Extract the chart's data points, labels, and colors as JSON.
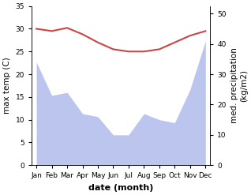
{
  "months": [
    "Jan",
    "Feb",
    "Mar",
    "Apr",
    "May",
    "Jun",
    "Jul",
    "Aug",
    "Sep",
    "Oct",
    "Nov",
    "Dec"
  ],
  "month_x": [
    0,
    1,
    2,
    3,
    4,
    5,
    6,
    7,
    8,
    9,
    10,
    11
  ],
  "temp_max": [
    30.0,
    29.5,
    30.2,
    28.8,
    27.0,
    25.5,
    25.0,
    25.0,
    25.5,
    27.0,
    28.5,
    29.5
  ],
  "precipitation": [
    34.0,
    23.0,
    24.0,
    17.0,
    16.0,
    10.0,
    10.0,
    17.0,
    15.0,
    14.0,
    25.0,
    41.0
  ],
  "temp_color": "#cc4444",
  "precip_fill_color": "#bcc5ee",
  "temp_ylim": [
    0,
    35
  ],
  "precip_ylim": [
    0,
    52.5
  ],
  "temp_yticks": [
    0,
    5,
    10,
    15,
    20,
    25,
    30,
    35
  ],
  "precip_yticks": [
    0,
    10,
    20,
    30,
    40,
    50
  ],
  "xlabel": "date (month)",
  "ylabel_left": "max temp (C)",
  "ylabel_right": "med. precipitation\n(kg/m2)",
  "label_fontsize": 7.5,
  "tick_fontsize": 6.5,
  "xlabel_fontsize": 8,
  "linewidth": 1.5
}
